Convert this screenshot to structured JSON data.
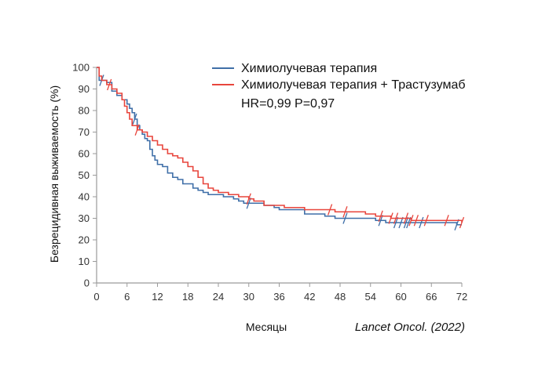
{
  "chart_data": {
    "type": "line",
    "ylabel": "Безрецидивная выживаемость (%)",
    "xlabel": "Месяцы",
    "xlim": [
      0,
      72
    ],
    "ylim": [
      0,
      100
    ],
    "x_ticks": [
      0,
      6,
      12,
      18,
      24,
      30,
      36,
      42,
      48,
      54,
      60,
      66,
      72
    ],
    "y_ticks": [
      0,
      10,
      20,
      30,
      40,
      50,
      60,
      70,
      80,
      90,
      100
    ],
    "grid": false,
    "legend_position": "top-right",
    "annotation": "HR=0,99 P=0,97",
    "source": "Lancet Oncol. (2022)",
    "series": [
      {
        "name": "Химиолучевая терапия",
        "color": "#3f6fa8",
        "steps": [
          [
            0,
            100
          ],
          [
            0.5,
            94
          ],
          [
            2,
            93
          ],
          [
            3,
            89
          ],
          [
            4,
            87
          ],
          [
            5,
            85
          ],
          [
            6,
            83
          ],
          [
            6.5,
            81
          ],
          [
            7,
            79
          ],
          [
            7.5,
            76
          ],
          [
            8,
            73
          ],
          [
            8.5,
            71
          ],
          [
            9,
            69
          ],
          [
            9.5,
            67
          ],
          [
            10,
            66
          ],
          [
            10.5,
            62
          ],
          [
            11,
            59
          ],
          [
            11.5,
            57
          ],
          [
            12,
            55
          ],
          [
            13,
            54
          ],
          [
            14,
            51
          ],
          [
            15,
            49
          ],
          [
            16,
            48
          ],
          [
            17,
            46
          ],
          [
            19,
            44
          ],
          [
            20,
            43
          ],
          [
            21,
            42
          ],
          [
            22,
            41
          ],
          [
            25,
            40
          ],
          [
            27,
            39
          ],
          [
            28,
            38
          ],
          [
            29,
            37
          ],
          [
            33,
            36
          ],
          [
            35,
            35
          ],
          [
            36,
            34
          ],
          [
            41,
            32
          ],
          [
            45,
            31
          ],
          [
            47,
            30
          ],
          [
            50,
            30
          ],
          [
            55,
            29
          ],
          [
            57,
            28
          ],
          [
            65,
            28
          ],
          [
            70,
            28
          ],
          [
            71,
            27
          ],
          [
            72,
            27
          ]
        ],
        "censored": [
          1,
          7.5,
          30,
          49,
          56,
          59,
          60,
          61,
          61.5,
          64,
          71
        ]
      },
      {
        "name": "Химиолучевая терапия + Трастузумаб",
        "color": "#e8453c",
        "steps": [
          [
            0,
            100
          ],
          [
            0.5,
            96
          ],
          [
            1,
            94
          ],
          [
            2,
            92
          ],
          [
            3,
            90
          ],
          [
            4,
            88
          ],
          [
            5,
            85
          ],
          [
            5.5,
            82
          ],
          [
            6,
            79
          ],
          [
            6.5,
            76
          ],
          [
            7,
            73
          ],
          [
            8,
            71
          ],
          [
            9,
            70
          ],
          [
            10,
            68
          ],
          [
            11,
            66
          ],
          [
            12,
            64
          ],
          [
            13,
            62
          ],
          [
            14,
            60
          ],
          [
            15,
            59
          ],
          [
            16,
            58
          ],
          [
            17,
            56
          ],
          [
            18,
            54
          ],
          [
            19,
            52
          ],
          [
            20,
            49
          ],
          [
            21,
            46
          ],
          [
            22,
            44
          ],
          [
            23,
            43
          ],
          [
            24,
            42
          ],
          [
            26,
            41
          ],
          [
            28,
            40
          ],
          [
            30,
            39
          ],
          [
            31,
            38
          ],
          [
            33,
            36
          ],
          [
            37,
            35
          ],
          [
            39,
            35
          ],
          [
            41,
            34
          ],
          [
            44,
            34
          ],
          [
            47,
            33
          ],
          [
            50,
            33
          ],
          [
            53,
            32
          ],
          [
            55,
            31
          ],
          [
            58,
            30
          ],
          [
            62,
            29
          ],
          [
            66,
            29
          ],
          [
            70,
            29
          ],
          [
            72,
            28
          ]
        ],
        "censored": [
          2.5,
          8,
          30,
          46,
          49,
          56,
          58,
          59,
          61,
          62,
          63,
          65,
          69,
          72
        ]
      }
    ]
  }
}
